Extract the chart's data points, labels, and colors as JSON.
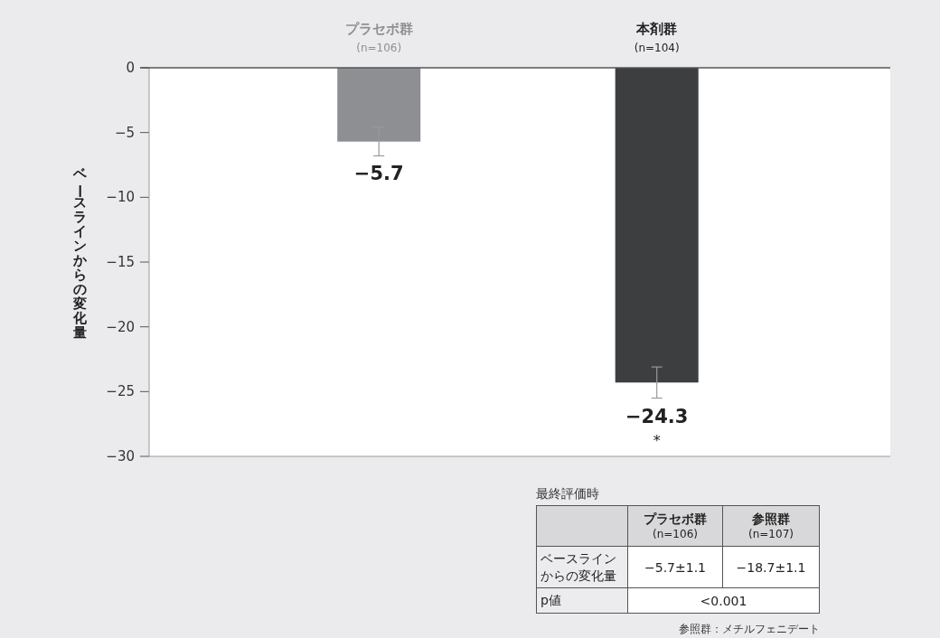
{
  "chart_data": [
    {
      "type": "bar",
      "ylabel": "ベースラインからの変化量",
      "categories": [
        "プラセボ群 (n=106)",
        "本剤群 (n=104)"
      ],
      "values": [
        -5.7,
        -24.3
      ],
      "colors": [
        "#8e8f93",
        "#3d3e40"
      ],
      "errors": [
        1.1,
        1.2
      ],
      "value_labels": [
        "−5.7",
        "−24.3"
      ],
      "ylim": [
        -30,
        0
      ],
      "yticks": [
        {
          "value": 0,
          "label": "0"
        },
        {
          "value": -5,
          "label": "−5"
        },
        {
          "value": -10,
          "label": "−10"
        },
        {
          "value": -15,
          "label": "−15"
        },
        {
          "value": -20,
          "label": "−20"
        },
        {
          "value": -25,
          "label": "−25"
        },
        {
          "value": -30,
          "label": "−30"
        }
      ],
      "grid": false,
      "annotations": [
        "*"
      ]
    },
    {
      "type": "other",
      "title": "最終評価時",
      "annotations": [
        "プラセボ群 (n=106)",
        "参照群 (n=107)",
        "ベースラインからの変化量",
        "−5.7±1.1",
        "−18.7±1.1",
        "p値",
        "<0.001",
        "参照群：メチルフェニデート"
      ]
    }
  ]
}
